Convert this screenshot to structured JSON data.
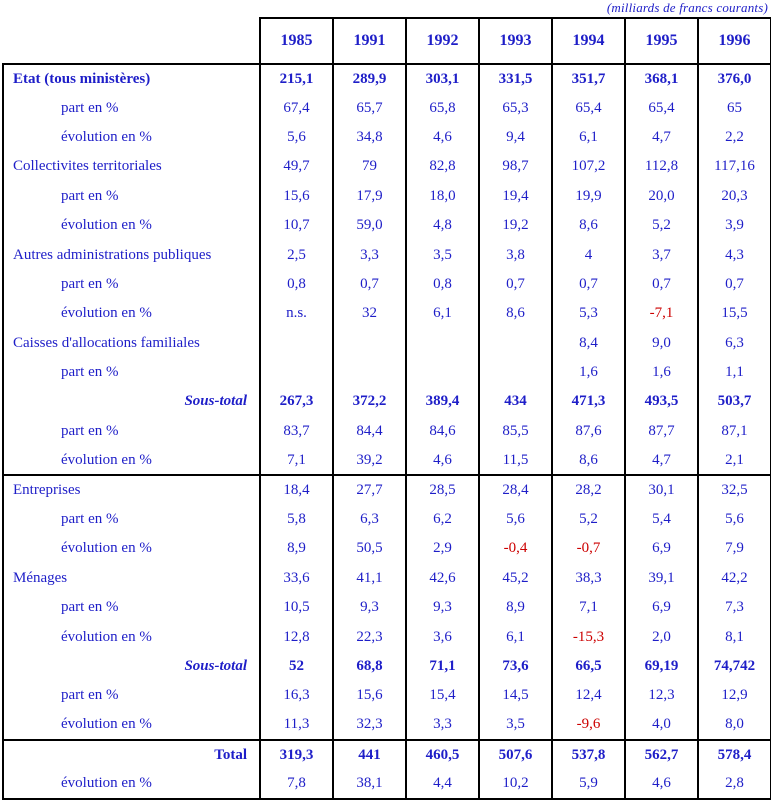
{
  "chart_data": {
    "type": "table",
    "unit_note": "(milliards de francs courants)",
    "columns": [
      "1985",
      "1991",
      "1992",
      "1993",
      "1994",
      "1995",
      "1996"
    ],
    "rows": [
      {
        "label": "Etat (tous ministères)",
        "label_style": "category-bold",
        "bold_values": true,
        "values": [
          "215,1",
          "289,9",
          "303,1",
          "331,5",
          "351,7",
          "368,1",
          "376,0"
        ]
      },
      {
        "label": "part en %",
        "label_style": "sub",
        "values": [
          "67,4",
          "65,7",
          "65,8",
          "65,3",
          "65,4",
          "65,4",
          "65"
        ]
      },
      {
        "label": "évolution en %",
        "label_style": "sub",
        "values": [
          "5,6",
          "34,8",
          "4,6",
          "9,4",
          "6,1",
          "4,7",
          "2,2"
        ]
      },
      {
        "label": "Collectivites territoriales",
        "label_style": "category",
        "values": [
          "49,7",
          "79",
          "82,8",
          "98,7",
          "107,2",
          "112,8",
          "117,16"
        ]
      },
      {
        "label": "part en %",
        "label_style": "sub",
        "values": [
          "15,6",
          "17,9",
          "18,0",
          "19,4",
          "19,9",
          "20,0",
          "20,3"
        ]
      },
      {
        "label": "évolution en %",
        "label_style": "sub",
        "values": [
          "10,7",
          "59,0",
          "4,8",
          "19,2",
          "8,6",
          "5,2",
          "3,9"
        ]
      },
      {
        "label": "Autres administrations publiques",
        "label_style": "category",
        "values": [
          "2,5",
          "3,3",
          "3,5",
          "3,8",
          "4",
          "3,7",
          "4,3"
        ]
      },
      {
        "label": "part en %",
        "label_style": "sub",
        "values": [
          "0,8",
          "0,7",
          "0,8",
          "0,7",
          "0,7",
          "0,7",
          "0,7"
        ]
      },
      {
        "label": "évolution en %",
        "label_style": "sub",
        "values": [
          "n.s.",
          "32",
          "6,1",
          "8,6",
          "5,3",
          "-7,1",
          "15,5"
        ]
      },
      {
        "label": "Caisses d'allocations familiales",
        "label_style": "category",
        "values": [
          "",
          "",
          "",
          "",
          "8,4",
          "9,0",
          "6,3"
        ]
      },
      {
        "label": "part en %",
        "label_style": "sub",
        "values": [
          "",
          "",
          "",
          "",
          "1,6",
          "1,6",
          "1,1"
        ]
      },
      {
        "label": "Sous-total",
        "label_style": "subtotal",
        "bold_values": true,
        "values": [
          "267,3",
          "372,2",
          "389,4",
          "434",
          "471,3",
          "493,5",
          "503,7"
        ]
      },
      {
        "label": "part en %",
        "label_style": "sub",
        "values": [
          "83,7",
          "84,4",
          "84,6",
          "85,5",
          "87,6",
          "87,7",
          "87,1"
        ]
      },
      {
        "label": "évolution en %",
        "label_style": "sub",
        "values": [
          "7,1",
          "39,2",
          "4,6",
          "11,5",
          "8,6",
          "4,7",
          "2,1"
        ]
      },
      {
        "label": "Entreprises",
        "label_style": "category",
        "divider_above": true,
        "values": [
          "18,4",
          "27,7",
          "28,5",
          "28,4",
          "28,2",
          "30,1",
          "32,5"
        ]
      },
      {
        "label": "part en %",
        "label_style": "sub",
        "values": [
          "5,8",
          "6,3",
          "6,2",
          "5,6",
          "5,2",
          "5,4",
          "5,6"
        ]
      },
      {
        "label": "évolution en %",
        "label_style": "sub",
        "values": [
          "8,9",
          "50,5",
          "2,9",
          "-0,4",
          "-0,7",
          "6,9",
          "7,9"
        ]
      },
      {
        "label": "Ménages",
        "label_style": "category",
        "values": [
          "33,6",
          "41,1",
          "42,6",
          "45,2",
          "38,3",
          "39,1",
          "42,2"
        ]
      },
      {
        "label": "part en %",
        "label_style": "sub",
        "values": [
          "10,5",
          "9,3",
          "9,3",
          "8,9",
          "7,1",
          "6,9",
          "7,3"
        ]
      },
      {
        "label": "évolution en %",
        "label_style": "sub",
        "values": [
          "12,8",
          "22,3",
          "3,6",
          "6,1",
          "-15,3",
          "2,0",
          "8,1"
        ]
      },
      {
        "label": "Sous-total",
        "label_style": "subtotal",
        "bold_values": true,
        "values": [
          "52",
          "68,8",
          "71,1",
          "73,6",
          "66,5",
          "69,19",
          "74,742"
        ]
      },
      {
        "label": "part en %",
        "label_style": "sub",
        "values": [
          "16,3",
          "15,6",
          "15,4",
          "14,5",
          "12,4",
          "12,3",
          "12,9"
        ]
      },
      {
        "label": "évolution en %",
        "label_style": "sub",
        "values": [
          "11,3",
          "32,3",
          "3,3",
          "3,5",
          "-9,6",
          "4,0",
          "8,0"
        ]
      },
      {
        "label": "Total",
        "label_style": "total",
        "bold_values": true,
        "divider_above": true,
        "values": [
          "319,3",
          "441",
          "460,5",
          "507,6",
          "537,8",
          "562,7",
          "578,4"
        ]
      },
      {
        "label": "évolution en %",
        "label_style": "sub",
        "values": [
          "7,8",
          "38,1",
          "4,4",
          "10,2",
          "5,9",
          "4,6",
          "2,8"
        ]
      }
    ]
  },
  "colors": {
    "text_blue": "#1e1ec8",
    "negative_red": "#cc0000",
    "border_color": "#000000",
    "background": "#ffffff"
  }
}
